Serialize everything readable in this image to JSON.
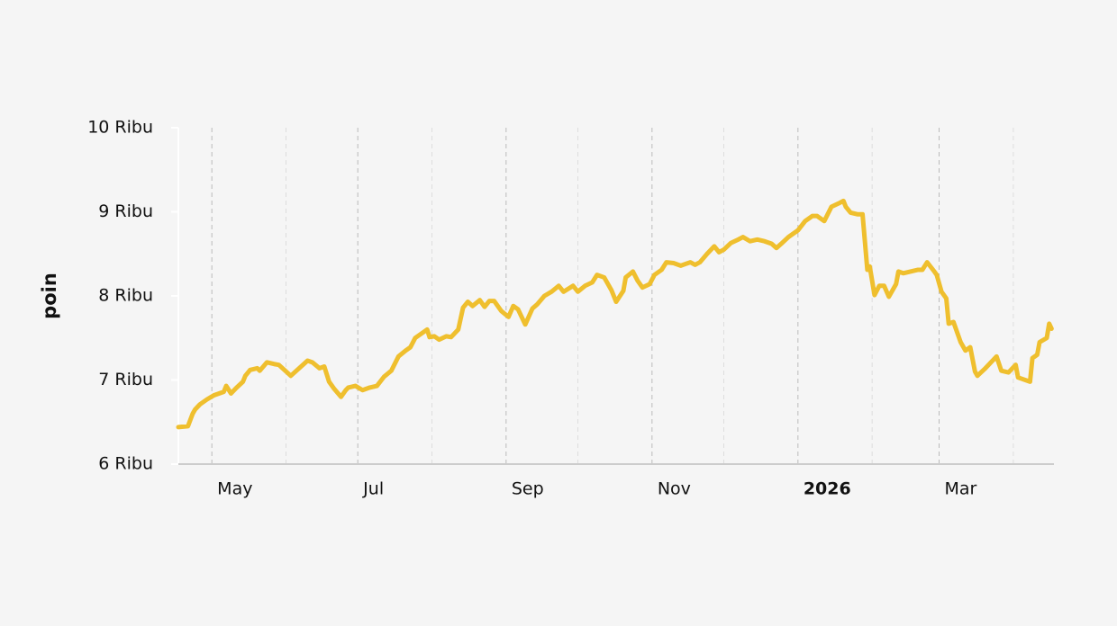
{
  "chart_data": {
    "type": "line",
    "y_label": "poin",
    "x": [
      -14,
      -10,
      -8,
      -7,
      -5,
      -2,
      1,
      5,
      6,
      8,
      10,
      13,
      14,
      16,
      19,
      20,
      23,
      26,
      28,
      33,
      40,
      42,
      45,
      47,
      49,
      51,
      54,
      56,
      57,
      60,
      63,
      66,
      69,
      72,
      75,
      78,
      81,
      83,
      85,
      87,
      90,
      91,
      93,
      95,
      98,
      100,
      103,
      105,
      107,
      109,
      112,
      114,
      116,
      118,
      121,
      124,
      126,
      128,
      131,
      134,
      136,
      139,
      142,
      145,
      147,
      151,
      153,
      156,
      159,
      161,
      164,
      167,
      169,
      172,
      173,
      176,
      178,
      180,
      183,
      185,
      188,
      190,
      193,
      196,
      200,
      202,
      204,
      207,
      210,
      212,
      214,
      217,
      220,
      222,
      225,
      228,
      231,
      234,
      236,
      238,
      241,
      245,
      248,
      251,
      253,
      256,
      259,
      262,
      264,
      265,
      267,
      270,
      272,
      274,
      275,
      277,
      279,
      281,
      283,
      286,
      287,
      289,
      292,
      295,
      297,
      299,
      302,
      303,
      305,
      307,
      308,
      310,
      313,
      315,
      317,
      319,
      320,
      323,
      328,
      330,
      333,
      336,
      337,
      342,
      343,
      345,
      346,
      349,
      350,
      351
    ],
    "series": [
      {
        "name": "poin",
        "color": "#efbf2e",
        "values": [
          6440,
          6450,
          6600,
          6650,
          6710,
          6770,
          6820,
          6860,
          6930,
          6840,
          6900,
          6980,
          7050,
          7120,
          7140,
          7110,
          7210,
          7190,
          7180,
          7050,
          7230,
          7210,
          7140,
          7160,
          6980,
          6900,
          6800,
          6880,
          6910,
          6930,
          6880,
          6910,
          6930,
          7040,
          7110,
          7280,
          7350,
          7390,
          7500,
          7540,
          7600,
          7510,
          7520,
          7480,
          7520,
          7510,
          7600,
          7860,
          7930,
          7880,
          7950,
          7870,
          7940,
          7940,
          7820,
          7750,
          7880,
          7840,
          7660,
          7850,
          7900,
          8000,
          8050,
          8120,
          8050,
          8120,
          8050,
          8120,
          8160,
          8250,
          8220,
          8070,
          7930,
          8060,
          8220,
          8290,
          8180,
          8100,
          8140,
          8250,
          8310,
          8400,
          8390,
          8360,
          8400,
          8370,
          8400,
          8500,
          8590,
          8520,
          8550,
          8630,
          8670,
          8700,
          8650,
          8670,
          8650,
          8620,
          8570,
          8620,
          8700,
          8780,
          8890,
          8950,
          8950,
          8890,
          9060,
          9100,
          9130,
          9060,
          8990,
          8970,
          8970,
          8310,
          8350,
          8010,
          8120,
          8120,
          7990,
          8140,
          8290,
          8270,
          8290,
          8310,
          8310,
          8400,
          8290,
          8250,
          8050,
          7970,
          7670,
          7690,
          7450,
          7350,
          7390,
          7100,
          7050,
          7130,
          7280,
          7110,
          7090,
          7180,
          7030,
          6980,
          7260,
          7300,
          7450,
          7500,
          7670,
          7610
        ]
      }
    ],
    "xlim": [
      -14,
      352
    ],
    "xticks": [
      {
        "value": 0,
        "label": "May"
      },
      {
        "value": 61,
        "label": "Jul"
      },
      {
        "value": 123,
        "label": "Sep"
      },
      {
        "value": 184,
        "label": "Nov"
      },
      {
        "value": 245,
        "label": "2026"
      },
      {
        "value": 304,
        "label": "Mar"
      }
    ],
    "xticks_minor": [
      31,
      92,
      153,
      214,
      276,
      335
    ],
    "ylim": [
      6000,
      10000
    ],
    "yticks": [
      {
        "value": 6000,
        "label": "6 Ribu"
      },
      {
        "value": 7000,
        "label": "7 Ribu"
      },
      {
        "value": 8000,
        "label": "8 Ribu"
      },
      {
        "value": 9000,
        "label": "9 Ribu"
      },
      {
        "value": 10000,
        "label": "10 Ribu"
      }
    ],
    "grid": true
  }
}
